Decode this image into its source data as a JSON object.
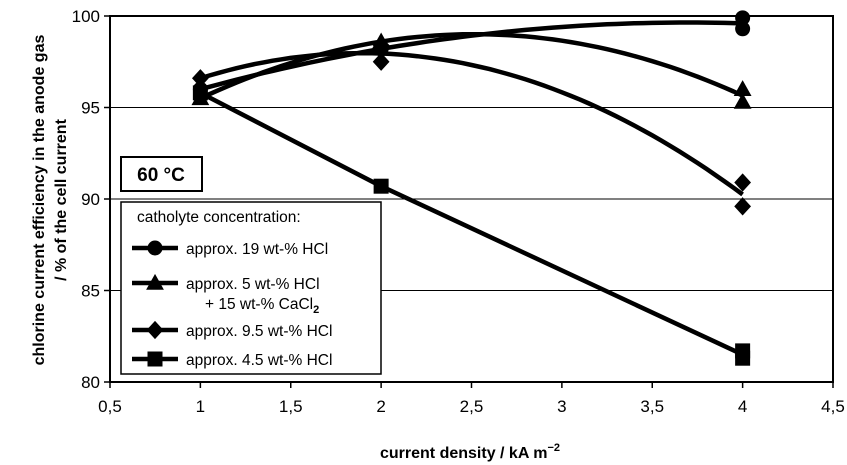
{
  "chart_data": {
    "type": "line",
    "xlabel": "current density   / kA m",
    "xlabel_sup": "−2",
    "ylabel_line1": "chlorine current efficiency in the anode gas",
    "ylabel_line2": "/ % of the cell current",
    "xlim": [
      0.5,
      4.5
    ],
    "ylim": [
      80,
      100
    ],
    "xticks": [
      "0,5",
      "1",
      "1,5",
      "2",
      "2,5",
      "3",
      "3,5",
      "4",
      "4,5"
    ],
    "yticks": [
      "80",
      "85",
      "90",
      "95",
      "100"
    ],
    "x_tick_values": [
      0.5,
      1,
      1.5,
      2,
      2.5,
      3,
      3.5,
      4,
      4.5
    ],
    "y_tick_values": [
      80,
      85,
      90,
      95,
      100
    ],
    "grid": "horizontal",
    "annotation": "60 °C",
    "legend_title": "catholyte concentration:",
    "legend_position": "lower-left",
    "series": [
      {
        "name": "approx. 19 wt-% HCl",
        "marker": "circle",
        "points": [
          [
            1,
            96.0
          ],
          [
            2,
            98.2
          ],
          [
            4,
            99.9
          ],
          [
            4,
            99.3
          ]
        ]
      },
      {
        "name": "approx. 5 wt-% HCl",
        "name_line2": "+ 15 wt-% CaCl",
        "name_line2_sub": "2",
        "marker": "triangle",
        "points": [
          [
            1,
            95.5
          ],
          [
            2,
            98.6
          ],
          [
            4,
            96.0
          ],
          [
            4,
            95.3
          ]
        ]
      },
      {
        "name": "approx. 9.5 wt-% HCl",
        "marker": "diamond",
        "points": [
          [
            1,
            96.6
          ],
          [
            2,
            98.4
          ],
          [
            2,
            97.5
          ],
          [
            4,
            90.9
          ],
          [
            4,
            89.6
          ]
        ]
      },
      {
        "name": "approx. 4.5 wt-% HCl",
        "marker": "square",
        "points": [
          [
            1,
            95.8
          ],
          [
            2,
            90.7
          ],
          [
            4,
            81.7
          ],
          [
            4,
            81.3
          ]
        ]
      }
    ]
  }
}
